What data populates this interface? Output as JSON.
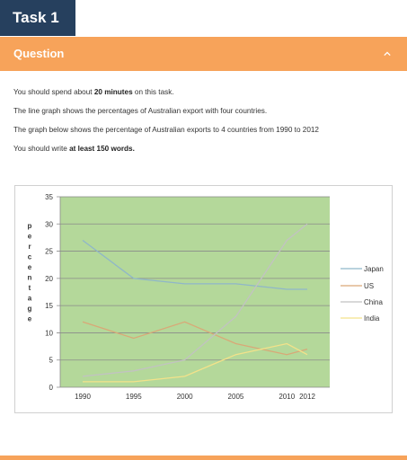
{
  "tab": {
    "label": "Task 1"
  },
  "section": {
    "title": "Question"
  },
  "instructions": {
    "line1_pre": "You should spend about ",
    "line1_bold": "20 minutes",
    "line1_post": " on this task.",
    "line2": "The line graph shows the percentages of Australian export with four countries.",
    "line3": "The graph below shows the percentage of Australian exports to 4 countries from 1990 to 2012",
    "line4_pre": "You should write ",
    "line4_bold": "at least 150 words."
  },
  "colors": {
    "tab_bg": "#26405e",
    "accent": "#f7a35a",
    "plot_bg": "#b4d89a",
    "japan": "#8fb6c9",
    "us": "#d9a877",
    "china": "#c2c2c2",
    "india": "#f3e28a"
  },
  "icons": {
    "collapse": "chevron-up-icon"
  },
  "chart_data": {
    "type": "line",
    "ylabel": "percentage",
    "categories": [
      "1990",
      "1995",
      "2000",
      "2005",
      "2010",
      "2012"
    ],
    "x": [
      1990,
      1995,
      2000,
      2005,
      2010,
      2012
    ],
    "ylim": [
      0,
      35
    ],
    "yticks": [
      0,
      5,
      10,
      15,
      20,
      25,
      30,
      35
    ],
    "grid": true,
    "legend_position": "right",
    "series": [
      {
        "name": "Japan",
        "values": [
          27,
          20,
          19,
          19,
          18,
          18
        ]
      },
      {
        "name": "US",
        "values": [
          12,
          9,
          12,
          8,
          6,
          7
        ]
      },
      {
        "name": "China",
        "values": [
          2,
          3,
          5,
          13,
          27,
          30
        ]
      },
      {
        "name": "India",
        "values": [
          1,
          1,
          2,
          6,
          8,
          6
        ]
      }
    ]
  }
}
